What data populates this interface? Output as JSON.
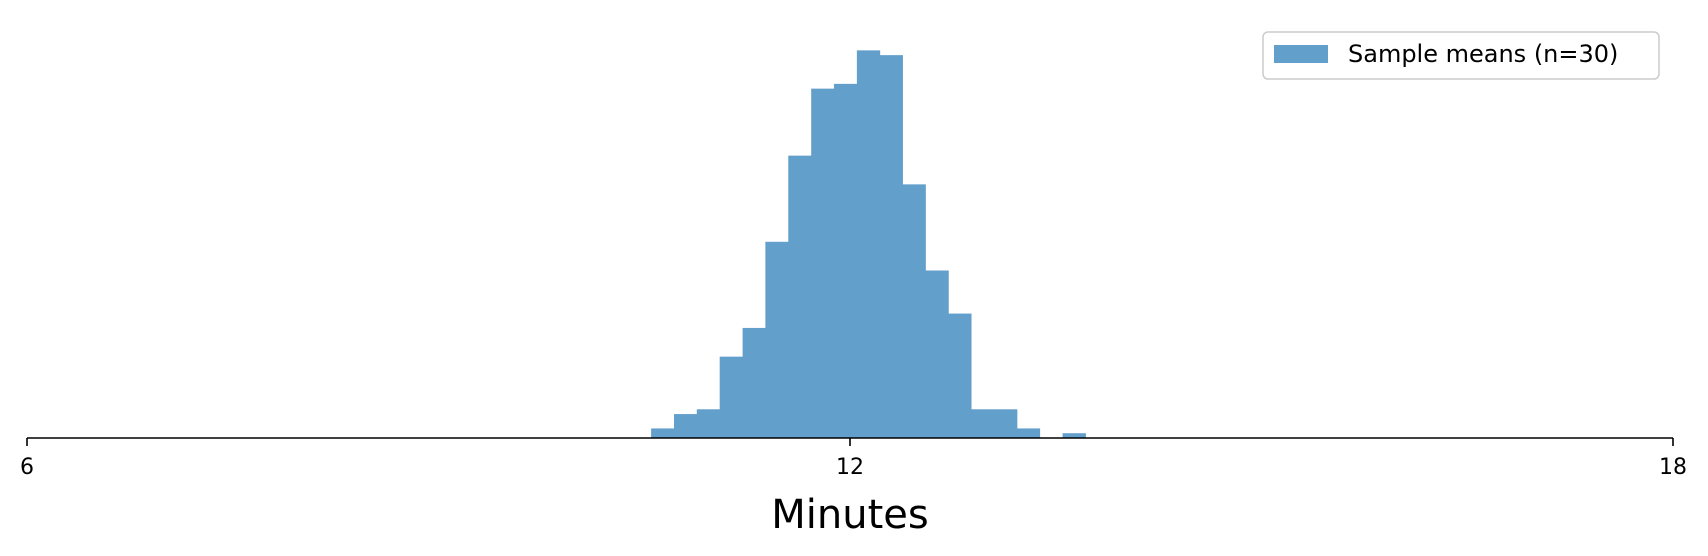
{
  "chart_data": {
    "type": "bar",
    "subtype": "histogram",
    "title": "",
    "xlabel": "Minutes",
    "ylabel": "",
    "xlim": [
      6,
      18
    ],
    "xticks": [
      6,
      12,
      18
    ],
    "xtick_labels": [
      "6",
      "12",
      "18"
    ],
    "y_axis_visible": false,
    "grid": false,
    "bin_width": 0.167,
    "bins": [
      {
        "x0": 10.55,
        "x1": 10.717,
        "count": 2
      },
      {
        "x0": 10.717,
        "x1": 10.883,
        "count": 5
      },
      {
        "x0": 10.883,
        "x1": 11.05,
        "count": 6
      },
      {
        "x0": 11.05,
        "x1": 11.217,
        "count": 17
      },
      {
        "x0": 11.217,
        "x1": 11.383,
        "count": 23
      },
      {
        "x0": 11.383,
        "x1": 11.55,
        "count": 41
      },
      {
        "x0": 11.55,
        "x1": 11.717,
        "count": 59
      },
      {
        "x0": 11.717,
        "x1": 11.883,
        "count": 73
      },
      {
        "x0": 11.883,
        "x1": 12.05,
        "count": 74
      },
      {
        "x0": 12.05,
        "x1": 12.217,
        "count": 81
      },
      {
        "x0": 12.217,
        "x1": 12.383,
        "count": 80
      },
      {
        "x0": 12.383,
        "x1": 12.55,
        "count": 53
      },
      {
        "x0": 12.55,
        "x1": 12.717,
        "count": 35
      },
      {
        "x0": 12.717,
        "x1": 12.883,
        "count": 26
      },
      {
        "x0": 12.883,
        "x1": 13.05,
        "count": 6
      },
      {
        "x0": 13.05,
        "x1": 13.217,
        "count": 6
      },
      {
        "x0": 13.217,
        "x1": 13.383,
        "count": 2
      },
      {
        "x0": 13.383,
        "x1": 13.55,
        "count": 0
      },
      {
        "x0": 13.55,
        "x1": 13.717,
        "count": 1
      }
    ],
    "ylim": [
      0,
      84
    ],
    "series": [
      {
        "name": "Sample means (n=30)",
        "color": "#629fcb"
      }
    ],
    "legend": {
      "placement": "top-right",
      "entries": [
        "Sample means (n=30)"
      ]
    }
  }
}
